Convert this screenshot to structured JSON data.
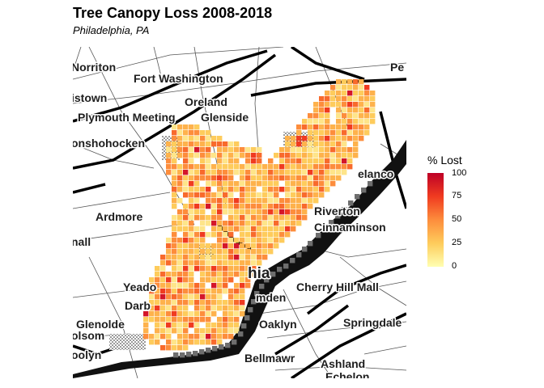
{
  "title": "Tree Canopy Loss 2008-2018",
  "subtitle": "Philadelphia, PA",
  "legend": {
    "title": "% Lost",
    "ticks": [
      "100",
      "75",
      "50",
      "25",
      "0"
    ],
    "colors": [
      "#ffffb2",
      "#fecc5c",
      "#fd8d3c",
      "#f03b20",
      "#bd0026"
    ]
  },
  "map": {
    "places": [
      {
        "name": "Norriton"
      },
      {
        "name": "Fort Washington"
      },
      {
        "name": "Pe"
      },
      {
        "name": "istown"
      },
      {
        "name": "Oreland"
      },
      {
        "name": "Plymouth Meeting"
      },
      {
        "name": "Glenside"
      },
      {
        "name": "onshohocken"
      },
      {
        "name": "elanco"
      },
      {
        "name": "Ardmore"
      },
      {
        "name": "Riverton"
      },
      {
        "name": "Cinnaminson"
      },
      {
        "name": "nall"
      },
      {
        "name": "hia"
      },
      {
        "name": "Yeado"
      },
      {
        "name": "Cherry Hill Mall"
      },
      {
        "name": "Darb"
      },
      {
        "name": "mden"
      },
      {
        "name": "Glenolde"
      },
      {
        "name": "Oaklyn"
      },
      {
        "name": "Springdale"
      },
      {
        "name": "olsom"
      },
      {
        "name": "oolyn"
      },
      {
        "name": "Bellmawr"
      },
      {
        "name": "Ashland"
      },
      {
        "name": "Echelon"
      }
    ],
    "colors": {
      "river": "#000000",
      "water_fill": "#1a1a1a",
      "roads": "#3a3a3a",
      "highway": "#000000",
      "shore": "#6e6e6e"
    }
  }
}
